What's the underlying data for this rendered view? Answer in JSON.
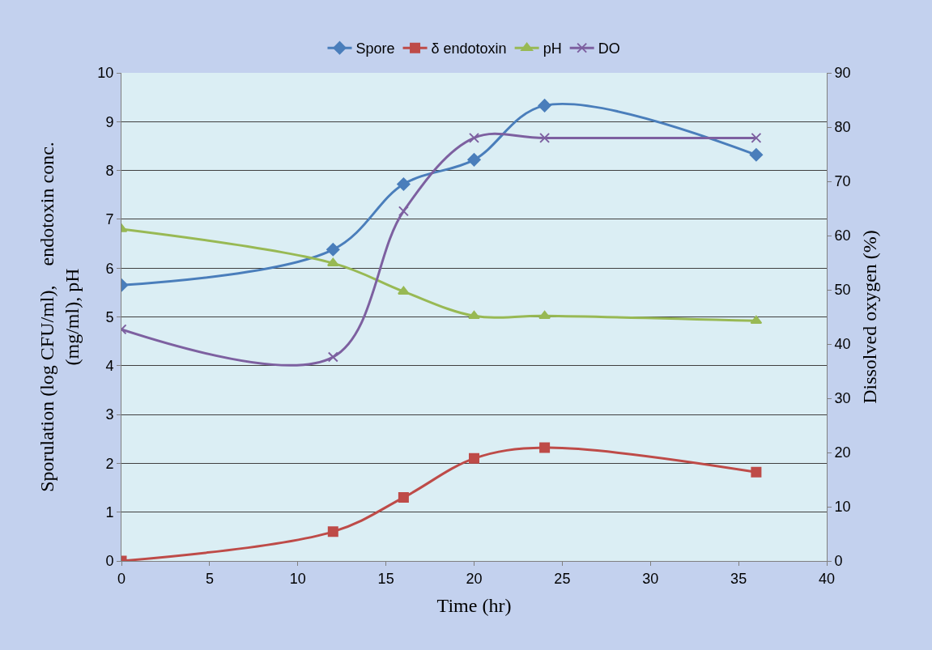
{
  "chart_data": {
    "type": "line",
    "xlabel": "Time (hr)",
    "ylabel": "Sporulation (log CFU/ml),    endotoxin conc.\n(mg/ml), pH",
    "y2label": "Dissolved oxygen (%)",
    "x": [
      0,
      12,
      16,
      20,
      24,
      36
    ],
    "series": [
      {
        "name": "Spore",
        "color": "#4a7ebb",
        "marker": "diamond",
        "values": [
          5.65,
          6.38,
          7.72,
          8.22,
          9.33,
          8.32
        ]
      },
      {
        "name": "δ endotoxin",
        "color": "#be4b48",
        "marker": "square",
        "values": [
          0,
          0.6,
          1.3,
          2.1,
          2.32,
          1.82
        ]
      },
      {
        "name": "pH",
        "color": "#98b954",
        "marker": "triangle",
        "values": [
          6.8,
          6.1,
          5.52,
          5.02,
          5.02,
          4.92
        ]
      },
      {
        "name": "DO",
        "color": "#7d60a0",
        "marker": "cross",
        "axis": "y2",
        "values": [
          42.7,
          37.6,
          64.5,
          78,
          78,
          78
        ]
      }
    ],
    "xlim": [
      0,
      40
    ],
    "xticks": [
      0,
      5,
      10,
      15,
      20,
      25,
      30,
      35,
      40
    ],
    "ylim": [
      0,
      10
    ],
    "yticks": [
      0,
      1,
      2,
      3,
      4,
      5,
      6,
      7,
      8,
      9,
      10
    ],
    "y2lim": [
      0,
      90
    ],
    "y2ticks": [
      0,
      10,
      20,
      30,
      40,
      50,
      60,
      70,
      80,
      90
    ],
    "grid": "y",
    "legend": "top"
  }
}
